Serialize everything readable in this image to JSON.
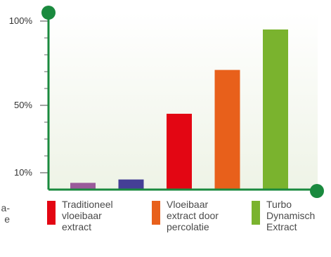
{
  "chart_data": {
    "type": "bar",
    "categories": [
      "",
      "",
      "Traditioneel vloeibaar extract",
      "Vloeibaar extract door percolatie",
      "Turbo Dynamisch Extract"
    ],
    "values": [
      4,
      6,
      45,
      71,
      95
    ],
    "colors": [
      "#9a5a9a",
      "#453f96",
      "#e30613",
      "#e8601b",
      "#7ab32e"
    ],
    "ylim": [
      0,
      105
    ],
    "yticks": [
      {
        "value": 10,
        "label": "10%"
      },
      {
        "value": 50,
        "label": "50%"
      },
      {
        "value": 100,
        "label": "100%"
      }
    ],
    "axis_color": "#1a8a3e",
    "grid": false
  },
  "legend": {
    "cut_text": "a-\ne",
    "items": [
      {
        "label": "Traditioneel\nvloeibaar\nextract",
        "color": "#e30613"
      },
      {
        "label": "Vloeibaar\nextract door\npercolatie",
        "color": "#e8601b"
      },
      {
        "label": "Turbo\nDynamisch\nExtract",
        "color": "#7ab32e"
      }
    ]
  }
}
